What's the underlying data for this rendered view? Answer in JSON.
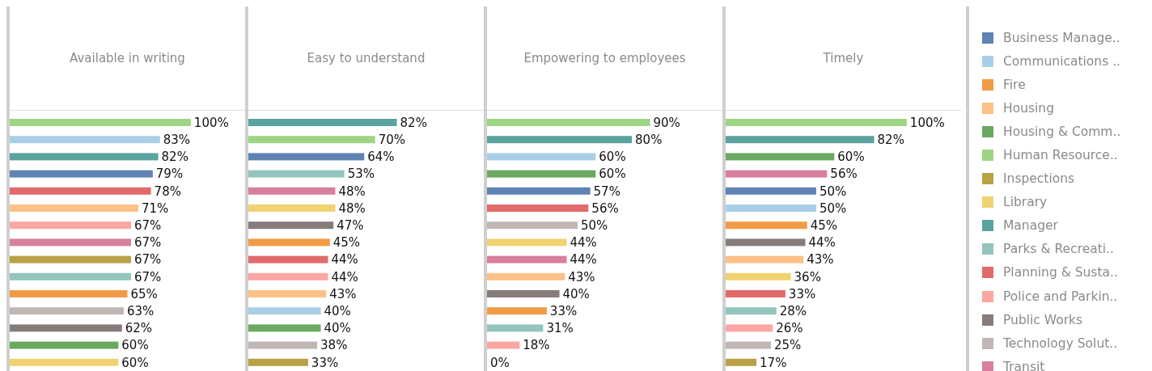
{
  "chart_data": [
    {
      "type": "bar",
      "title": "Available in writing",
      "orientation": "horizontal",
      "xlim": [
        0,
        130
      ],
      "tick_labels": false,
      "categories": [
        null,
        null,
        null,
        null,
        null,
        null,
        null,
        null,
        null,
        null,
        null,
        null,
        null,
        null,
        null
      ],
      "values": [
        100,
        83,
        82,
        79,
        78,
        71,
        67,
        67,
        67,
        67,
        65,
        63,
        62,
        60,
        60
      ],
      "colors": [
        "#9dd584",
        "#a9cfe8",
        "#5ba39e",
        "#5f83b3",
        "#e26a6a",
        "#fdc086",
        "#fca6a2",
        "#d87f9e",
        "#b9a146",
        "#93c5bd",
        "#f29b45",
        "#c0b7b5",
        "#867c7a",
        "#6aa95f",
        "#f0d270"
      ],
      "value_labels": [
        "100%",
        "83%",
        "82%",
        "79%",
        "78%",
        "71%",
        "67%",
        "67%",
        "67%",
        "67%",
        "65%",
        "63%",
        "62%",
        "60%",
        "60%"
      ]
    },
    {
      "type": "bar",
      "title": "Easy to understand",
      "orientation": "horizontal",
      "xlim": [
        0,
        130
      ],
      "tick_labels": false,
      "categories": [
        null,
        null,
        null,
        null,
        null,
        null,
        null,
        null,
        null,
        null,
        null,
        null,
        null,
        null,
        null
      ],
      "values": [
        82,
        70,
        64,
        53,
        48,
        48,
        47,
        45,
        44,
        44,
        43,
        40,
        40,
        38,
        33
      ],
      "colors": [
        "#5ba39e",
        "#9dd584",
        "#5f83b3",
        "#93c5bd",
        "#d87f9e",
        "#f0d270",
        "#867c7a",
        "#f29b45",
        "#e26a6a",
        "#fca6a2",
        "#fdc086",
        "#a9cfe8",
        "#6aa95f",
        "#c0b7b5",
        "#b9a146"
      ],
      "value_labels": [
        "82%",
        "70%",
        "64%",
        "53%",
        "48%",
        "48%",
        "47%",
        "45%",
        "44%",
        "44%",
        "43%",
        "40%",
        "40%",
        "38%",
        "33%"
      ]
    },
    {
      "type": "bar",
      "title": "Empowering to employees",
      "orientation": "horizontal",
      "xlim": [
        0,
        130
      ],
      "tick_labels": false,
      "categories": [
        null,
        null,
        null,
        null,
        null,
        null,
        null,
        null,
        null,
        null,
        null,
        null,
        null,
        null,
        null
      ],
      "values": [
        90,
        80,
        60,
        60,
        57,
        56,
        50,
        44,
        44,
        43,
        40,
        33,
        31,
        18,
        0
      ],
      "colors": [
        "#9dd584",
        "#5ba39e",
        "#a9cfe8",
        "#6aa95f",
        "#5f83b3",
        "#e26a6a",
        "#c0b7b5",
        "#f0d270",
        "#d87f9e",
        "#fdc086",
        "#867c7a",
        "#f29b45",
        "#93c5bd",
        "#fca6a2",
        "#b9a146"
      ],
      "value_labels": [
        "90%",
        "80%",
        "60%",
        "60%",
        "57%",
        "56%",
        "50%",
        "44%",
        "44%",
        "43%",
        "40%",
        "33%",
        "31%",
        "18%",
        "0%"
      ]
    },
    {
      "type": "bar",
      "title": "Timely",
      "orientation": "horizontal",
      "xlim": [
        0,
        130
      ],
      "tick_labels": false,
      "categories": [
        null,
        null,
        null,
        null,
        null,
        null,
        null,
        null,
        null,
        null,
        null,
        null,
        null,
        null,
        null
      ],
      "values": [
        100,
        82,
        60,
        56,
        50,
        50,
        45,
        44,
        43,
        36,
        33,
        28,
        26,
        25,
        17
      ],
      "colors": [
        "#9dd584",
        "#5ba39e",
        "#6aa95f",
        "#d87f9e",
        "#5f83b3",
        "#a9cfe8",
        "#f29b45",
        "#867c7a",
        "#fdc086",
        "#f0d270",
        "#e26a6a",
        "#93c5bd",
        "#fca6a2",
        "#c0b7b5",
        "#b9a146"
      ],
      "value_labels": [
        "100%",
        "82%",
        "60%",
        "56%",
        "50%",
        "50%",
        "45%",
        "44%",
        "43%",
        "36%",
        "33%",
        "28%",
        "26%",
        "25%",
        "17%"
      ]
    },
    {
      "type": "other",
      "categories": [
        "Business Manage..",
        "Communications ..",
        "Fire",
        "Housing",
        "Housing & Comm..",
        "Human Resource..",
        "Inspections",
        "Library",
        "Manager",
        "Parks & Recreati..",
        "Planning & Susta..",
        "Police and Parkin..",
        "Public Works",
        "Technology Solut..",
        "Transit"
      ],
      "colors": [
        "#5f83b3",
        "#a9cfe8",
        "#f29b45",
        "#fdc086",
        "#6aa95f",
        "#9dd584",
        "#b9a146",
        "#f0d270",
        "#5ba39e",
        "#93c5bd",
        "#e26a6a",
        "#fca6a2",
        "#867c7a",
        "#c0b7b5",
        "#d87f9e"
      ]
    }
  ]
}
